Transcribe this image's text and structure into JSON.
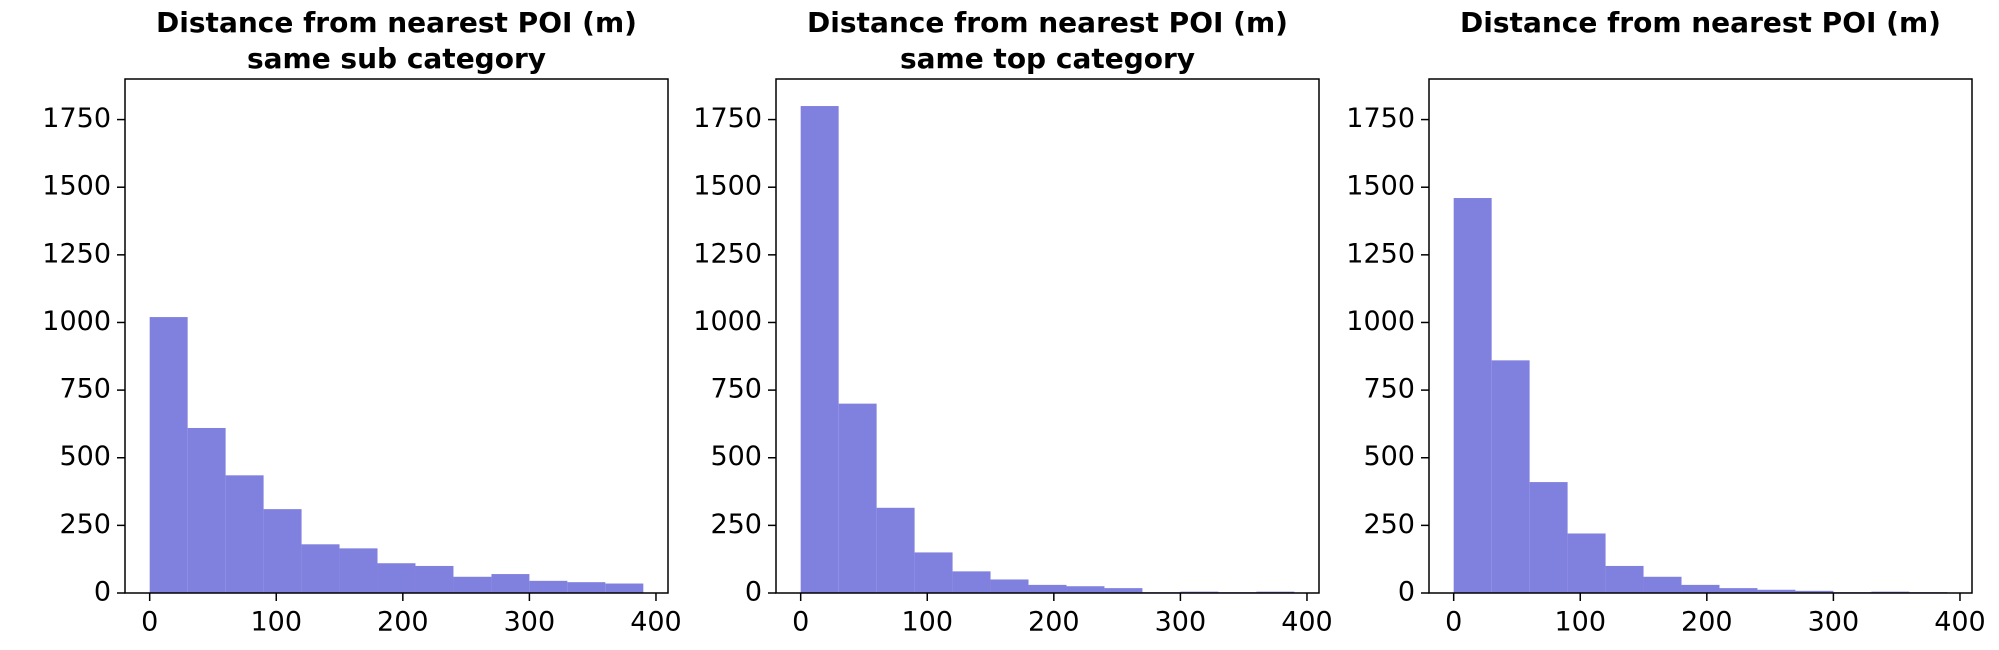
{
  "chart_data": [
    {
      "type": "histogram",
      "title": [
        "Distance from nearest POI (m)",
        "same sub category"
      ],
      "bins": [
        0,
        30,
        60,
        90,
        120,
        150,
        180,
        210,
        240,
        270,
        300,
        330,
        360,
        390
      ],
      "counts": [
        1020,
        610,
        435,
        310,
        180,
        165,
        110,
        100,
        60,
        70,
        45,
        40,
        35
      ],
      "color": "#8080df",
      "xlim": [
        -19.5,
        409.5
      ],
      "ylim": [
        0,
        1900
      ],
      "xticks": [
        0,
        100,
        200,
        300,
        400
      ],
      "yticks": [
        0,
        250,
        500,
        750,
        1000,
        1250,
        1500,
        1750
      ]
    },
    {
      "type": "histogram",
      "title": [
        "Distance from nearest POI (m)",
        "same top category"
      ],
      "bins": [
        0,
        30,
        60,
        90,
        120,
        150,
        180,
        210,
        240,
        270,
        300,
        330,
        360,
        390
      ],
      "counts": [
        1800,
        700,
        315,
        150,
        80,
        50,
        30,
        25,
        18,
        3,
        5,
        3,
        5
      ],
      "color": "#8080df",
      "xlim": [
        -19.5,
        409.5
      ],
      "ylim": [
        0,
        1900
      ],
      "xticks": [
        0,
        100,
        200,
        300,
        400
      ],
      "yticks": [
        0,
        250,
        500,
        750,
        1000,
        1250,
        1500,
        1750
      ]
    },
    {
      "type": "histogram",
      "title": [
        "Distance from nearest POI (m)"
      ],
      "bins": [
        0,
        30,
        60,
        90,
        120,
        150,
        180,
        210,
        240,
        270,
        300,
        330,
        360,
        390
      ],
      "counts": [
        1460,
        860,
        410,
        220,
        100,
        60,
        30,
        18,
        12,
        8,
        3,
        5,
        3
      ],
      "color": "#8080df",
      "xlim": [
        -19.5,
        409.5
      ],
      "ylim": [
        0,
        1900
      ],
      "xticks": [
        0,
        100,
        200,
        300,
        400
      ],
      "yticks": [
        0,
        250,
        500,
        750,
        1000,
        1250,
        1500,
        1750
      ]
    }
  ]
}
